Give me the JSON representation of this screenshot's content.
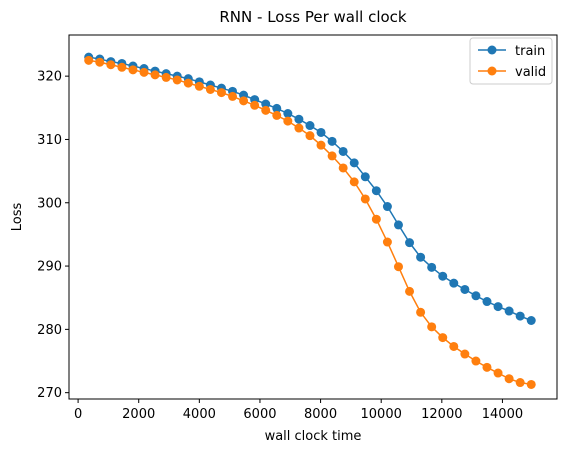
{
  "chart_data": {
    "type": "line",
    "title": "RNN - Loss Per wall clock",
    "xlabel": "wall clock time",
    "ylabel": "Loss",
    "xlim": [
      -300,
      15800
    ],
    "ylim": [
      269.0,
      326.5
    ],
    "xticks": [
      0,
      2000,
      4000,
      6000,
      8000,
      10000,
      12000,
      14000
    ],
    "yticks": [
      270,
      280,
      290,
      300,
      310,
      320
    ],
    "grid": false,
    "legend_position": "top-right",
    "x": [
      350,
      715,
      1080,
      1445,
      1810,
      2175,
      2540,
      2905,
      3270,
      3635,
      4000,
      4365,
      4730,
      5095,
      5460,
      5825,
      6190,
      6555,
      6920,
      7285,
      7650,
      8015,
      8380,
      8745,
      9110,
      9475,
      9840,
      10205,
      10570,
      10935,
      11300,
      11665,
      12030,
      12395,
      12760,
      13125,
      13490,
      13855,
      14220,
      14585,
      14950
    ],
    "series": [
      {
        "name": "train",
        "color": "#1f77b4",
        "values": [
          323.0,
          322.7,
          322.3,
          322.0,
          321.6,
          321.2,
          320.8,
          320.4,
          320.0,
          319.6,
          319.1,
          318.6,
          318.1,
          317.6,
          317.0,
          316.3,
          315.6,
          314.9,
          314.1,
          313.2,
          312.2,
          311.1,
          309.7,
          308.1,
          306.3,
          304.1,
          301.9,
          299.4,
          296.5,
          293.7,
          291.4,
          289.8,
          288.4,
          287.3,
          286.3,
          285.3,
          284.4,
          283.6,
          282.9,
          282.1,
          281.4
        ]
      },
      {
        "name": "valid",
        "color": "#ff7f0e",
        "values": [
          322.5,
          322.2,
          321.8,
          321.4,
          321.0,
          320.6,
          320.2,
          319.8,
          319.4,
          318.9,
          318.4,
          317.9,
          317.4,
          316.8,
          316.1,
          315.4,
          314.6,
          313.8,
          312.9,
          311.8,
          310.6,
          309.1,
          307.4,
          305.5,
          303.3,
          300.6,
          297.4,
          293.8,
          289.9,
          286.0,
          282.7,
          280.4,
          278.7,
          277.3,
          276.1,
          275.0,
          274.0,
          273.1,
          272.2,
          271.6,
          271.3
        ]
      }
    ]
  }
}
